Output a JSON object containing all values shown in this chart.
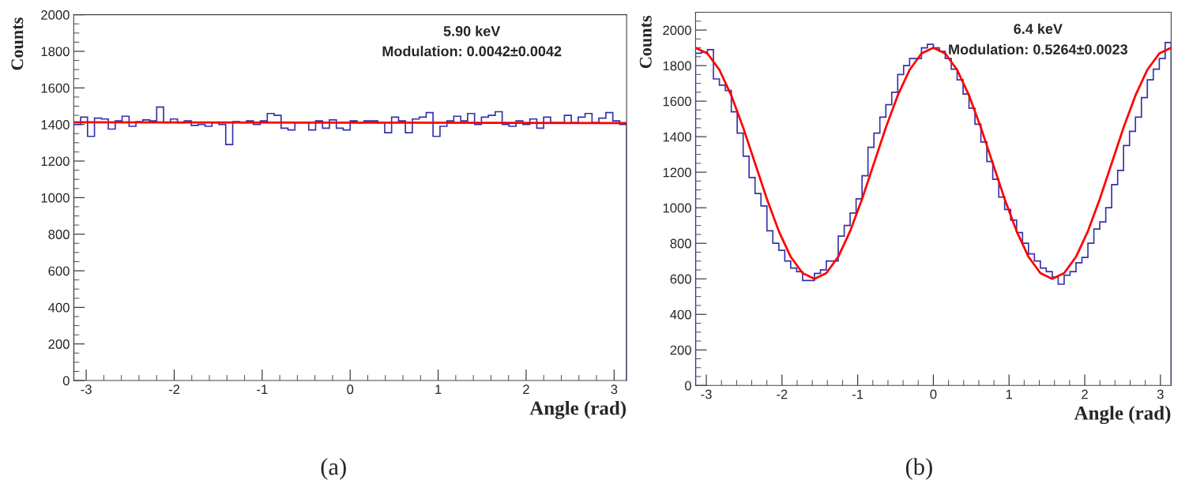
{
  "chart_data": [
    {
      "type": "histogram",
      "xlabel": "Angle (rad)",
      "ylabel": "Counts",
      "color": "#3333aa",
      "annotations": [
        "5.90 keV",
        "Modulation: 0.0042±0.0042",
        "(a)"
      ],
      "bins": [
        -3.142,
        -3.063,
        -2.985,
        -2.906,
        -2.827,
        -2.749,
        -2.67,
        -2.592,
        -2.513,
        -2.435,
        -2.356,
        -2.278,
        -2.199,
        -2.121,
        -2.042,
        -1.963,
        -1.885,
        -1.806,
        -1.728,
        -1.649,
        -1.571,
        -1.492,
        -1.414,
        -1.335,
        -1.257,
        -1.178,
        -1.1,
        -1.021,
        -0.942,
        -0.864,
        -0.785,
        -0.707,
        -0.628,
        -0.55,
        -0.471,
        -0.393,
        -0.314,
        -0.236,
        -0.157,
        -0.079,
        0,
        0.079,
        0.157,
        0.236,
        0.314,
        0.393,
        0.471,
        0.55,
        0.628,
        0.707,
        0.785,
        0.864,
        0.942,
        1.021,
        1.1,
        1.178,
        1.257,
        1.335,
        1.414,
        1.492,
        1.571,
        1.649,
        1.728,
        1.806,
        1.885,
        1.963,
        2.042,
        2.121,
        2.199,
        2.278,
        2.356,
        2.435,
        2.513,
        2.592,
        2.67,
        2.749,
        2.827,
        2.906,
        2.985,
        3.063,
        3.142
      ],
      "values": [
        1400,
        1440,
        1335,
        1435,
        1430,
        1375,
        1420,
        1445,
        1390,
        1415,
        1425,
        1420,
        1495,
        1410,
        1430,
        1410,
        1420,
        1395,
        1400,
        1390,
        1410,
        1400,
        1290,
        1415,
        1410,
        1420,
        1400,
        1420,
        1460,
        1450,
        1380,
        1370,
        1410,
        1410,
        1370,
        1420,
        1380,
        1425,
        1380,
        1370,
        1420,
        1410,
        1420,
        1420,
        1410,
        1355,
        1440,
        1420,
        1355,
        1430,
        1440,
        1465,
        1335,
        1390,
        1420,
        1445,
        1420,
        1460,
        1400,
        1440,
        1450,
        1470,
        1400,
        1390,
        1420,
        1400,
        1430,
        1380,
        1440,
        1410,
        1410,
        1450,
        1410,
        1440,
        1460,
        1410,
        1435,
        1465,
        1420,
        1400
      ],
      "series": [
        {
          "type": "line",
          "color": "#ff0000",
          "x": [
            -3.142,
            0,
            3.142
          ],
          "values": [
            1412,
            1410,
            1408
          ]
        }
      ],
      "xlim": [
        -3.142,
        3.142
      ],
      "xticks": [
        -3,
        -2,
        -1,
        0,
        1,
        2,
        3
      ],
      "ylim": [
        0,
        2000
      ],
      "yticks": [
        0,
        200,
        400,
        600,
        800,
        1000,
        1200,
        1400,
        1600,
        1800,
        2000
      ]
    },
    {
      "type": "histogram",
      "xlabel": "Angle (rad)",
      "ylabel": "Counts",
      "color": "#3333aa",
      "annotations": [
        "6.4 keV",
        "Modulation: 0.5264±0.0023",
        "(b)"
      ],
      "bins": [
        -3.142,
        -3.063,
        -2.985,
        -2.906,
        -2.827,
        -2.749,
        -2.67,
        -2.592,
        -2.513,
        -2.435,
        -2.356,
        -2.278,
        -2.199,
        -2.121,
        -2.042,
        -1.963,
        -1.885,
        -1.806,
        -1.728,
        -1.649,
        -1.571,
        -1.492,
        -1.414,
        -1.335,
        -1.257,
        -1.178,
        -1.1,
        -1.021,
        -0.942,
        -0.864,
        -0.785,
        -0.707,
        -0.628,
        -0.55,
        -0.471,
        -0.393,
        -0.314,
        -0.236,
        -0.157,
        -0.079,
        0,
        0.079,
        0.157,
        0.236,
        0.314,
        0.393,
        0.471,
        0.55,
        0.628,
        0.707,
        0.785,
        0.864,
        0.942,
        1.021,
        1.1,
        1.178,
        1.257,
        1.335,
        1.414,
        1.492,
        1.571,
        1.649,
        1.728,
        1.806,
        1.885,
        1.963,
        2.042,
        2.121,
        2.199,
        2.278,
        2.356,
        2.435,
        2.513,
        2.592,
        2.67,
        2.749,
        2.827,
        2.906,
        2.985,
        3.063,
        3.142
      ],
      "values": [
        1870,
        1875,
        1890,
        1725,
        1690,
        1660,
        1540,
        1420,
        1290,
        1170,
        1080,
        1010,
        870,
        800,
        760,
        700,
        660,
        640,
        590,
        590,
        630,
        650,
        700,
        700,
        840,
        900,
        970,
        1050,
        1180,
        1340,
        1420,
        1510,
        1580,
        1650,
        1750,
        1800,
        1840,
        1840,
        1900,
        1920,
        1900,
        1880,
        1840,
        1780,
        1720,
        1640,
        1560,
        1470,
        1370,
        1260,
        1160,
        1060,
        990,
        930,
        860,
        800,
        740,
        700,
        660,
        640,
        610,
        570,
        620,
        640,
        690,
        720,
        800,
        880,
        920,
        1000,
        1130,
        1210,
        1350,
        1430,
        1510,
        1620,
        1720,
        1780,
        1840,
        1930
      ],
      "series": [
        {
          "type": "line",
          "color": "#ff0000",
          "x": [
            -3.142,
            -2.985,
            -2.827,
            -2.67,
            -2.513,
            -2.356,
            -2.199,
            -2.042,
            -1.885,
            -1.728,
            -1.571,
            -1.414,
            -1.257,
            -1.1,
            -0.942,
            -0.785,
            -0.628,
            -0.471,
            -0.314,
            -0.157,
            0,
            0.157,
            0.314,
            0.471,
            0.628,
            0.785,
            0.942,
            1.1,
            1.257,
            1.414,
            1.571,
            1.728,
            1.885,
            2.042,
            2.199,
            2.356,
            2.513,
            2.67,
            2.827,
            2.985,
            3.142
          ],
          "values": [
            1900,
            1868,
            1776,
            1632,
            1451,
            1250,
            1049,
            868,
            724,
            632,
            600,
            632,
            724,
            868,
            1049,
            1250,
            1451,
            1632,
            1776,
            1868,
            1900,
            1868,
            1776,
            1632,
            1451,
            1250,
            1049,
            868,
            724,
            632,
            600,
            632,
            724,
            868,
            1049,
            1250,
            1451,
            1632,
            1776,
            1868,
            1900
          ]
        }
      ],
      "xlim": [
        -3.142,
        3.142
      ],
      "xticks": [
        -3,
        -2,
        -1,
        0,
        1,
        2,
        3
      ],
      "ylim": [
        0,
        2100
      ],
      "yticks": [
        0,
        200,
        400,
        600,
        800,
        1000,
        1200,
        1400,
        1600,
        1800,
        2000
      ]
    }
  ]
}
